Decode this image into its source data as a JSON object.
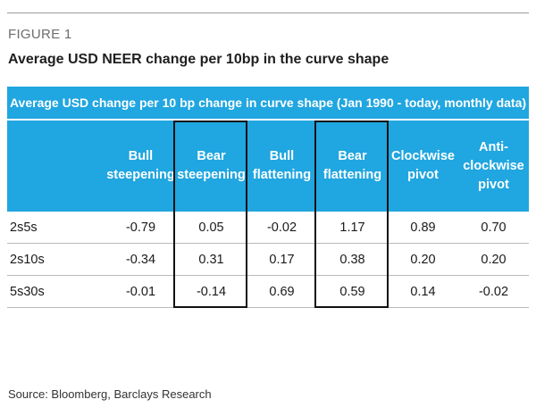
{
  "figure_label": "FIGURE 1",
  "figure_title": "Average USD NEER change per 10bp in the curve shape",
  "chart_data": {
    "type": "table",
    "title": "Average USD change per 10 bp change in curve shape (Jan 1990 - today, monthly data)",
    "columns": [
      "Bull\nsteepening",
      "Bear\nsteepening",
      "Bull\nflattening",
      "Bear\nflattening",
      "Clockwise\npivot",
      "Anti-\nclockwise\npivot"
    ],
    "highlighted_columns": [
      "Bear\nsteepening",
      "Bear\nflattening"
    ],
    "rows": [
      {
        "label": "2s5s",
        "values": [
          "-0.79",
          "0.05",
          "-0.02",
          "1.17",
          "0.89",
          "0.70"
        ]
      },
      {
        "label": "2s10s",
        "values": [
          "-0.34",
          "0.31",
          "0.17",
          "0.38",
          "0.20",
          "0.20"
        ]
      },
      {
        "label": "5s30s",
        "values": [
          "-0.01",
          "-0.14",
          "0.69",
          "0.59",
          "0.14",
          "-0.02"
        ]
      }
    ],
    "header_color": "#20a6e0"
  },
  "source": "Source: Bloomberg, Barclays Research"
}
